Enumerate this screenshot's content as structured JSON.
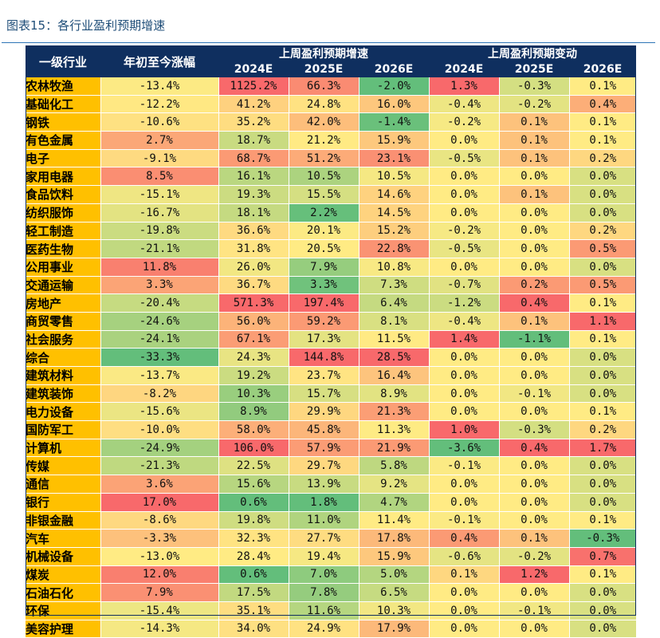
{
  "figure_title": "图表15：各行业盈利预期增速",
  "headers": {
    "industry": "一级行业",
    "ytd": "年初至今涨幅",
    "growth_group": "上周盈利预期增速",
    "change_group": "上周盈利预期变动",
    "years": [
      "2024E",
      "2025E",
      "2026E"
    ]
  },
  "rows": [
    {
      "name": "农林牧渔",
      "ytd": "-13.4%",
      "g": [
        "1125.2%",
        "66.3%",
        "-2.0%"
      ],
      "c": [
        "1.3%",
        "-0.3%",
        "0.1%"
      ]
    },
    {
      "name": "基础化工",
      "ytd": "-12.2%",
      "g": [
        "41.2%",
        "24.8%",
        "16.0%"
      ],
      "c": [
        "-0.4%",
        "-0.2%",
        "0.4%"
      ]
    },
    {
      "name": "钢铁",
      "ytd": "-10.6%",
      "g": [
        "35.2%",
        "42.0%",
        "-1.4%"
      ],
      "c": [
        "-0.2%",
        "0.1%",
        "0.1%"
      ]
    },
    {
      "name": "有色金属",
      "ytd": "2.7%",
      "g": [
        "18.7%",
        "21.2%",
        "15.9%"
      ],
      "c": [
        "0.0%",
        "0.1%",
        "0.1%"
      ]
    },
    {
      "name": "电子",
      "ytd": "-9.1%",
      "g": [
        "68.7%",
        "51.2%",
        "23.1%"
      ],
      "c": [
        "-0.5%",
        "0.1%",
        "0.2%"
      ]
    },
    {
      "name": "家用电器",
      "ytd": "8.5%",
      "g": [
        "16.1%",
        "10.5%",
        "10.5%"
      ],
      "c": [
        "0.0%",
        "0.0%",
        "0.0%"
      ]
    },
    {
      "name": "食品饮料",
      "ytd": "-15.1%",
      "g": [
        "19.3%",
        "15.5%",
        "14.6%"
      ],
      "c": [
        "0.0%",
        "0.1%",
        "0.0%"
      ]
    },
    {
      "name": "纺织服饰",
      "ytd": "-16.7%",
      "g": [
        "18.1%",
        "2.2%",
        "14.5%"
      ],
      "c": [
        "0.0%",
        "0.0%",
        "0.0%"
      ]
    },
    {
      "name": "轻工制造",
      "ytd": "-19.8%",
      "g": [
        "36.6%",
        "20.1%",
        "15.2%"
      ],
      "c": [
        "-0.2%",
        "0.0%",
        "0.2%"
      ]
    },
    {
      "name": "医药生物",
      "ytd": "-21.1%",
      "g": [
        "31.8%",
        "20.5%",
        "22.8%"
      ],
      "c": [
        "-0.5%",
        "0.0%",
        "0.5%"
      ]
    },
    {
      "name": "公用事业",
      "ytd": "11.8%",
      "g": [
        "26.0%",
        "7.9%",
        "10.8%"
      ],
      "c": [
        "0.0%",
        "0.0%",
        "0.0%"
      ]
    },
    {
      "name": "交通运输",
      "ytd": "3.3%",
      "g": [
        "36.7%",
        "3.3%",
        "7.3%"
      ],
      "c": [
        "-0.7%",
        "0.2%",
        "0.5%"
      ]
    },
    {
      "name": "房地产",
      "ytd": "-20.4%",
      "g": [
        "571.3%",
        "197.4%",
        "6.4%"
      ],
      "c": [
        "-1.2%",
        "0.4%",
        "0.1%"
      ]
    },
    {
      "name": "商贸零售",
      "ytd": "-24.6%",
      "g": [
        "56.0%",
        "59.2%",
        "8.1%"
      ],
      "c": [
        "-0.4%",
        "0.1%",
        "1.1%"
      ]
    },
    {
      "name": "社会服务",
      "ytd": "-24.1%",
      "g": [
        "67.1%",
        "17.3%",
        "11.5%"
      ],
      "c": [
        "1.4%",
        "-1.1%",
        "0.1%"
      ]
    },
    {
      "name": "综合",
      "ytd": "-33.3%",
      "g": [
        "24.3%",
        "144.8%",
        "28.5%"
      ],
      "c": [
        "0.0%",
        "0.0%",
        "0.0%"
      ]
    },
    {
      "name": "建筑材料",
      "ytd": "-13.7%",
      "g": [
        "19.2%",
        "23.7%",
        "16.4%"
      ],
      "c": [
        "0.0%",
        "0.0%",
        "0.0%"
      ]
    },
    {
      "name": "建筑装饰",
      "ytd": "-8.2%",
      "g": [
        "10.3%",
        "15.7%",
        "8.9%"
      ],
      "c": [
        "0.0%",
        "-0.1%",
        "0.0%"
      ]
    },
    {
      "name": "电力设备",
      "ytd": "-15.6%",
      "g": [
        "8.9%",
        "29.9%",
        "21.3%"
      ],
      "c": [
        "0.0%",
        "0.0%",
        "0.1%"
      ]
    },
    {
      "name": "国防军工",
      "ytd": "-10.0%",
      "g": [
        "58.0%",
        "45.8%",
        "11.3%"
      ],
      "c": [
        "1.0%",
        "-0.3%",
        "0.2%"
      ]
    },
    {
      "name": "计算机",
      "ytd": "-24.9%",
      "g": [
        "106.0%",
        "57.9%",
        "21.9%"
      ],
      "c": [
        "-3.6%",
        "0.4%",
        "1.7%"
      ]
    },
    {
      "name": "传媒",
      "ytd": "-21.3%",
      "g": [
        "22.5%",
        "29.7%",
        "5.8%"
      ],
      "c": [
        "-0.1%",
        "0.0%",
        "0.0%"
      ]
    },
    {
      "name": "通信",
      "ytd": "3.6%",
      "g": [
        "15.6%",
        "13.9%",
        "9.2%"
      ],
      "c": [
        "0.0%",
        "0.0%",
        "0.0%"
      ]
    },
    {
      "name": "银行",
      "ytd": "17.0%",
      "g": [
        "0.6%",
        "1.8%",
        "4.7%"
      ],
      "c": [
        "0.0%",
        "0.0%",
        "0.0%"
      ]
    },
    {
      "name": "非银金融",
      "ytd": "-8.6%",
      "g": [
        "19.8%",
        "11.0%",
        "11.4%"
      ],
      "c": [
        "-0.1%",
        "0.0%",
        "0.1%"
      ]
    },
    {
      "name": "汽车",
      "ytd": "-3.3%",
      "g": [
        "32.3%",
        "27.7%",
        "17.8%"
      ],
      "c": [
        "0.4%",
        "0.1%",
        "-0.3%"
      ]
    },
    {
      "name": "机械设备",
      "ytd": "-13.0%",
      "g": [
        "28.4%",
        "19.4%",
        "15.9%"
      ],
      "c": [
        "-0.6%",
        "-0.2%",
        "0.7%"
      ]
    },
    {
      "name": "煤炭",
      "ytd": "12.0%",
      "g": [
        "0.6%",
        "7.0%",
        "5.0%"
      ],
      "c": [
        "0.1%",
        "1.2%",
        "0.1%"
      ]
    },
    {
      "name": "石油石化",
      "ytd": "7.9%",
      "g": [
        "17.5%",
        "7.8%",
        "6.5%"
      ],
      "c": [
        "0.0%",
        "0.0%",
        "0.0%"
      ]
    },
    {
      "name": "环保",
      "ytd": "-15.4%",
      "g": [
        "35.1%",
        "11.6%",
        "10.3%"
      ],
      "c": [
        "0.0%",
        "-0.1%",
        "0.0%"
      ]
    },
    {
      "name": "美容护理",
      "ytd": "-14.3%",
      "g": [
        "34.0%",
        "24.9%",
        "17.9%"
      ],
      "c": [
        "0.0%",
        "0.0%",
        "0.0%"
      ]
    }
  ],
  "colors": {
    "header_bg": "#0f2f5f",
    "industry_bg": "#ffc000",
    "scale_low": "#63be7b",
    "scale_mid": "#ffeb84",
    "scale_high": "#f8696b"
  }
}
